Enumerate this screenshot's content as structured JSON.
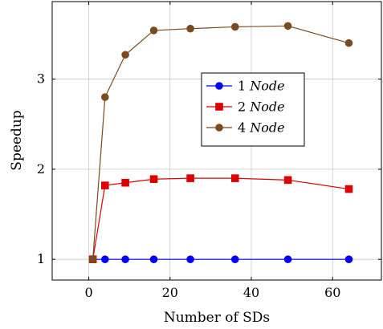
{
  "chart_data": {
    "type": "line",
    "xlabel": "Number of SDs",
    "ylabel": "Speedup",
    "xlim": [
      -9,
      72
    ],
    "ylim": [
      0.77,
      3.86
    ],
    "x_ticks": [
      0,
      20,
      40,
      60
    ],
    "y_ticks": [
      1,
      2,
      3
    ],
    "grid": true,
    "legend_position": "center-right",
    "series": [
      {
        "name": "1 Node",
        "label_prefix": "1 ",
        "label_italic": "Node",
        "color": "#0000ff",
        "marker": "circle",
        "x": [
          1,
          4,
          9,
          16,
          25,
          36,
          49,
          64
        ],
        "y": [
          1,
          1,
          1,
          1,
          1,
          1,
          1,
          1
        ]
      },
      {
        "name": "2 Node",
        "label_prefix": "2 ",
        "label_italic": "Node",
        "color": "#dd0000",
        "marker": "square",
        "x": [
          1,
          4,
          9,
          16,
          25,
          36,
          49,
          64
        ],
        "y": [
          1,
          1.82,
          1.85,
          1.89,
          1.9,
          1.9,
          1.88,
          1.78
        ]
      },
      {
        "name": "4 Node",
        "label_prefix": "4 ",
        "label_italic": "Node",
        "color": "#7a4a20",
        "marker": "circle",
        "x": [
          1,
          4,
          9,
          16,
          25,
          36,
          49,
          64
        ],
        "y": [
          1,
          2.8,
          3.27,
          3.54,
          3.56,
          3.58,
          3.59,
          3.4
        ]
      }
    ]
  }
}
